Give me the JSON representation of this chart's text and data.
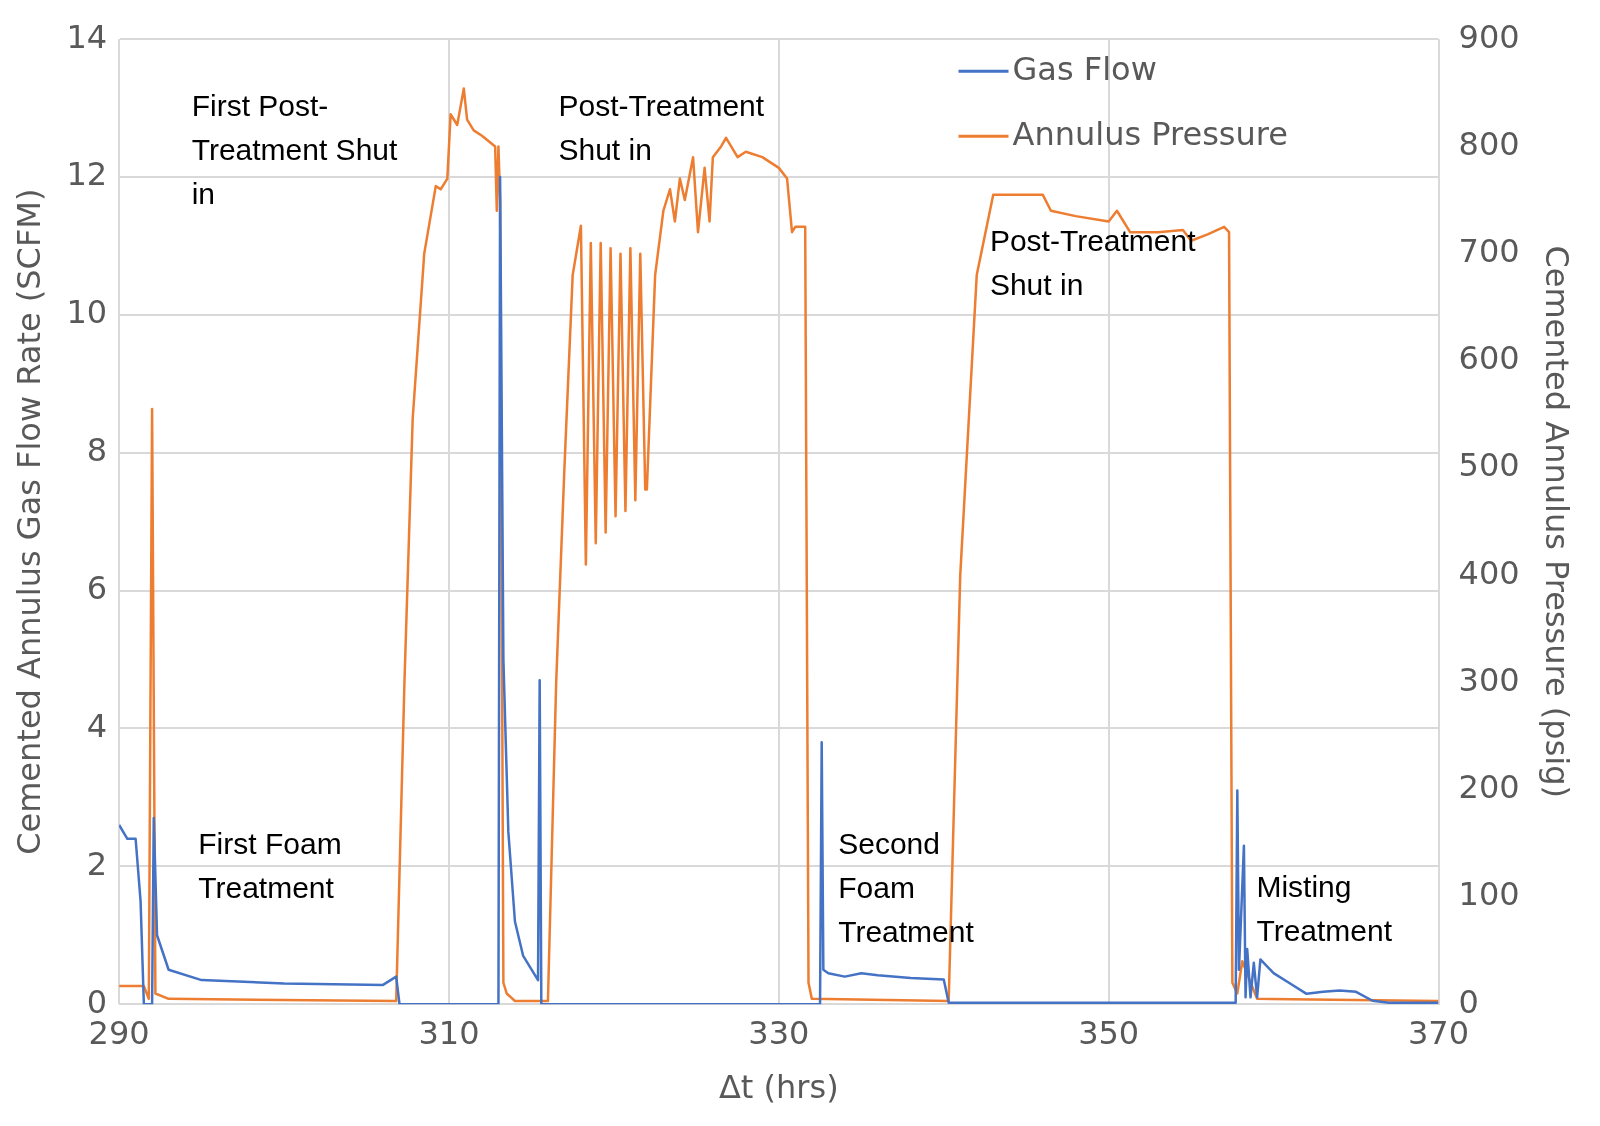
{
  "chart_data": {
    "type": "line",
    "xlabel": "Δt (hrs)",
    "ylabel": "Cemented Annulus Gas Flow Rate (SCFM)",
    "y2label": "Cemented Annulus Pressure (psig)",
    "xlim": [
      290,
      370
    ],
    "xticks": [
      290,
      310,
      330,
      350,
      370
    ],
    "ylim": [
      0,
      14
    ],
    "yticks": [
      0,
      2,
      4,
      6,
      8,
      10,
      12,
      14
    ],
    "y2lim": [
      0,
      900
    ],
    "y2ticks": [
      0,
      100,
      200,
      300,
      400,
      500,
      600,
      700,
      800,
      900
    ],
    "grid": true,
    "legend": "top right",
    "marker": "none",
    "line_style": "solid",
    "series": [
      {
        "name": "Gas Flow",
        "color": "#4472c4",
        "axis": "y",
        "x": [
          290,
          290.5,
          291,
          291.3,
          291.5,
          292.0,
          292.1,
          292.3,
          293,
          295,
          300,
          306,
          306.8,
          307,
          313.0,
          313.1,
          313.3,
          313.6,
          314.0,
          314.5,
          315.4,
          315.5,
          315.6,
          332.5,
          332.6,
          332.7,
          333,
          334,
          335,
          336,
          338,
          340,
          340.3,
          357.7,
          357.8,
          357.9,
          358.2,
          358.3,
          358.4,
          358.6,
          358.8,
          359.0,
          359.2,
          359.4,
          360,
          361,
          362,
          363,
          364,
          365,
          366,
          367,
          370
        ],
        "values": [
          2.6,
          2.4,
          2.4,
          1.5,
          0,
          0,
          2.7,
          1.0,
          0.5,
          0.35,
          0.3,
          0.28,
          0.4,
          0,
          0,
          12.0,
          5,
          2.5,
          1.2,
          0.7,
          0.35,
          4.7,
          0,
          0,
          3.8,
          0.5,
          0.45,
          0.4,
          0.45,
          0.42,
          0.38,
          0.36,
          0.02,
          0.02,
          3.1,
          0.5,
          2.3,
          0.1,
          0.8,
          0.1,
          0.6,
          0.1,
          0.65,
          0.6,
          0.45,
          0.3,
          0.15,
          0.18,
          0.2,
          0.18,
          0.05,
          0.02,
          0.02
        ]
      },
      {
        "name": "Annulus Pressure",
        "color": "#ed7d31",
        "axis": "y2",
        "x": [
          290,
          291.5,
          291.8,
          292.0,
          292.2,
          293,
          306.8,
          307.3,
          307.8,
          308.5,
          309.2,
          309.5,
          309.9,
          310.1,
          310.5,
          310.9,
          311.1,
          311.5,
          312,
          312.8,
          312.9,
          313.0,
          313.1,
          313.3,
          313.5,
          314,
          316.0,
          316.5,
          317,
          317.5,
          318.0,
          318.3,
          318.6,
          318.9,
          319.2,
          319.5,
          319.8,
          320.1,
          320.4,
          320.7,
          321,
          321.3,
          321.6,
          321.9,
          322.0,
          322.5,
          323,
          323.4,
          323.7,
          324,
          324.3,
          324.8,
          325.1,
          325.5,
          325.8,
          326,
          326.5,
          326.8,
          327.5,
          328,
          329,
          330,
          330.5,
          330.8,
          331.0,
          331.6,
          331.8,
          332,
          340.3,
          341,
          342,
          343,
          345,
          346,
          346.5,
          348,
          350,
          350.5,
          351.3,
          353,
          354.5,
          355,
          356,
          357,
          357.3,
          357.5,
          357.8,
          358.1,
          359,
          370
        ],
        "values": [
          17,
          17,
          5,
          555,
          10,
          5,
          3,
          300,
          546,
          700,
          763,
          760,
          770,
          830,
          820,
          854,
          825,
          815,
          810,
          800,
          740,
          800,
          750,
          20,
          10,
          3,
          3,
          300,
          500,
          680,
          726,
          410,
          710,
          430,
          710,
          440,
          705,
          455,
          700,
          460,
          705,
          470,
          700,
          480,
          480,
          680,
          740,
          760,
          730,
          770,
          750,
          790,
          720,
          780,
          730,
          790,
          800,
          808,
          790,
          795,
          790,
          780,
          770,
          720,
          725,
          725,
          20,
          5,
          3,
          400,
          680,
          755,
          755,
          755,
          740,
          735,
          730,
          740,
          720,
          720,
          722,
          712,
          718,
          725,
          720,
          20,
          10,
          40,
          5,
          3
        ]
      }
    ],
    "annotations": [
      "First Post-\nTreatment Shut\nin",
      "Post-Treatment\nShut in",
      "Post-Treatment\nShut in",
      "First Foam\nTreatment",
      "Second\nFoam\nTreatment",
      "Misting\nTreatment"
    ]
  }
}
